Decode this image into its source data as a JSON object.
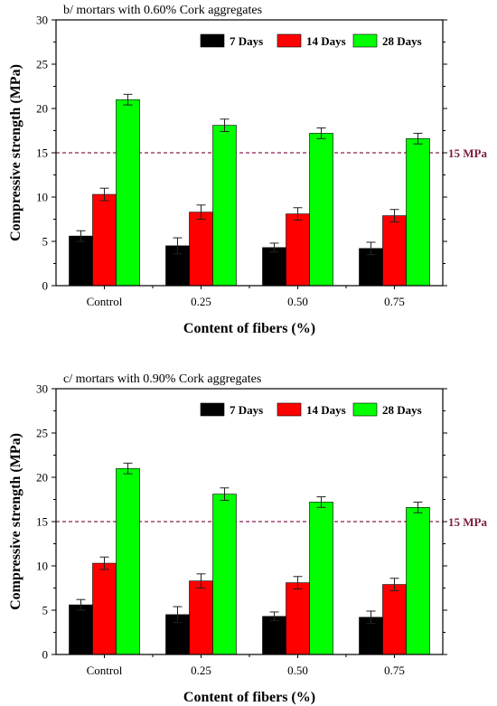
{
  "chart_data": [
    {
      "type": "bar",
      "title": "b/ mortars with 0.60% Cork aggregates",
      "xlabel": "Content of fibers (%)",
      "ylabel": "Compressive strength (MPa)",
      "categories": [
        "Control",
        "0.25",
        "0.50",
        "0.75"
      ],
      "ylim": [
        0,
        30
      ],
      "yticks": [
        0,
        5,
        10,
        15,
        20,
        25,
        30
      ],
      "legend_position": "top-right",
      "reference_line": {
        "value": 15,
        "label": "15 MPa",
        "color": "#8b2252"
      },
      "series": [
        {
          "name": "7 Days",
          "color": "#000000",
          "values": [
            5.6,
            4.5,
            4.3,
            4.2
          ],
          "errors": [
            0.6,
            0.9,
            0.5,
            0.7
          ]
        },
        {
          "name": "14 Days",
          "color": "#ff0000",
          "values": [
            10.3,
            8.3,
            8.1,
            7.9
          ],
          "errors": [
            0.7,
            0.8,
            0.7,
            0.7
          ]
        },
        {
          "name": "28 Days",
          "color": "#00ff00",
          "values": [
            21.0,
            18.1,
            17.2,
            16.6
          ],
          "errors": [
            0.6,
            0.7,
            0.6,
            0.6
          ]
        }
      ]
    },
    {
      "type": "bar",
      "title": "c/ mortars with 0.90% Cork aggregates",
      "xlabel": "Content of fibers (%)",
      "ylabel": "Compressive strength (MPa)",
      "categories": [
        "Control",
        "0.25",
        "0.50",
        "0.75"
      ],
      "ylim": [
        0,
        30
      ],
      "yticks": [
        0,
        5,
        10,
        15,
        20,
        25,
        30
      ],
      "legend_position": "top-right",
      "reference_line": {
        "value": 15,
        "label": "15 MPa",
        "color": "#8b2252"
      },
      "series": [
        {
          "name": "7 Days",
          "color": "#000000",
          "values": [
            5.6,
            4.5,
            4.3,
            4.2
          ],
          "errors": [
            0.6,
            0.9,
            0.5,
            0.7
          ]
        },
        {
          "name": "14 Days",
          "color": "#ff0000",
          "values": [
            10.3,
            8.3,
            8.1,
            7.9
          ],
          "errors": [
            0.7,
            0.8,
            0.7,
            0.7
          ]
        },
        {
          "name": "28 Days",
          "color": "#00ff00",
          "values": [
            21.0,
            18.1,
            17.2,
            16.6
          ],
          "errors": [
            0.6,
            0.7,
            0.6,
            0.6
          ]
        }
      ]
    }
  ]
}
